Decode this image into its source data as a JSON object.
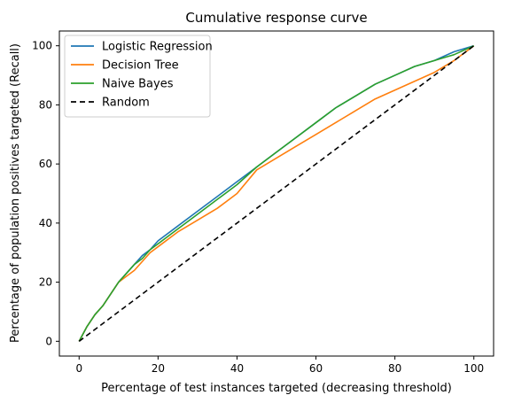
{
  "chart_data": {
    "type": "line",
    "title": "Cumulative response curve",
    "xlabel": "Percentage of test instances targeted (decreasing threshold)",
    "ylabel": "Percentage of population positives targeted (Recall)",
    "xlim": [
      -5,
      105
    ],
    "ylim": [
      -5,
      105
    ],
    "xticks": [
      0,
      20,
      40,
      60,
      80,
      100
    ],
    "yticks": [
      0,
      20,
      40,
      60,
      80,
      100
    ],
    "grid": false,
    "legend_position": "top-left",
    "series": [
      {
        "name": "Logistic Regression",
        "color": "#1f77b4",
        "dash": "",
        "x": [
          0,
          2,
          4,
          6,
          8,
          10,
          12,
          14,
          16,
          18,
          20,
          25,
          30,
          35,
          40,
          45,
          50,
          55,
          60,
          65,
          70,
          75,
          80,
          85,
          90,
          95,
          100
        ],
        "y": [
          0,
          5,
          9,
          12,
          16,
          20,
          23,
          26,
          29,
          31,
          34,
          39,
          44,
          49,
          54,
          59,
          64,
          69,
          74,
          79,
          83,
          87,
          90,
          93,
          95,
          98,
          100
        ]
      },
      {
        "name": "Decision Tree",
        "color": "#ff7f0e",
        "dash": "",
        "x": [
          0,
          2,
          4,
          6,
          8,
          10,
          12,
          14,
          16,
          18,
          20,
          25,
          30,
          35,
          40,
          45,
          50,
          55,
          60,
          65,
          70,
          75,
          80,
          85,
          90,
          95,
          100
        ],
        "y": [
          0,
          5,
          9,
          12,
          16,
          20,
          22,
          24,
          27,
          30,
          32,
          37,
          41,
          45,
          50,
          58,
          62,
          66,
          70,
          74,
          78,
          82,
          85,
          88,
          91,
          95,
          100
        ]
      },
      {
        "name": "Naive Bayes",
        "color": "#2ca02c",
        "dash": "",
        "x": [
          0,
          2,
          4,
          6,
          8,
          10,
          12,
          14,
          16,
          18,
          20,
          25,
          30,
          35,
          40,
          45,
          50,
          55,
          60,
          65,
          70,
          75,
          80,
          85,
          90,
          95,
          100
        ],
        "y": [
          0,
          5,
          9,
          12,
          16,
          20,
          23,
          26,
          28,
          31,
          33,
          38,
          43,
          48,
          53,
          59,
          64,
          69,
          74,
          79,
          83,
          87,
          90,
          93,
          95,
          97,
          100
        ]
      },
      {
        "name": "Random",
        "color": "#000000",
        "dash": "6,4",
        "x": [
          0,
          100
        ],
        "y": [
          0,
          100
        ]
      }
    ]
  }
}
